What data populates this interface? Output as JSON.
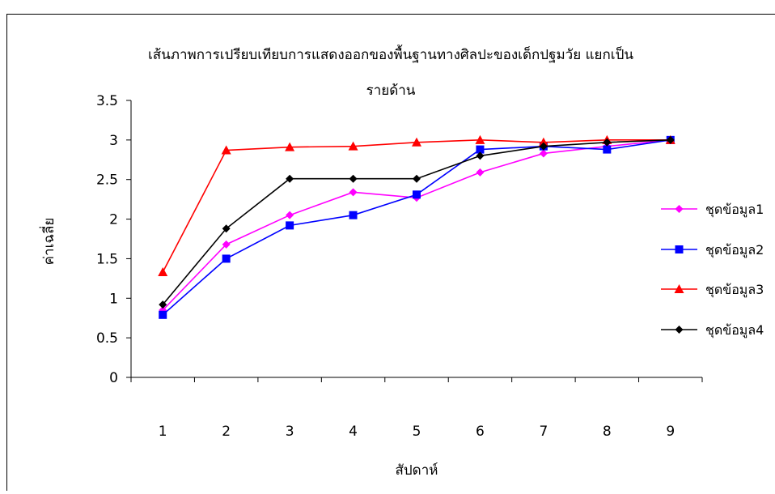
{
  "chart_data": {
    "type": "line",
    "title_line1": "เส้นภาพการเปรียบเทียบการแสดงออกของพื้นฐานทางศิลปะของเด็กปฐมวัย แยกเป็น",
    "title_line2": "รายด้าน",
    "xlabel": "สัปดาห์",
    "ylabel": "ค่าเฉลี่ย",
    "x": [
      "1",
      "2",
      "3",
      "4",
      "5",
      "6",
      "7",
      "8",
      "9"
    ],
    "ylim": [
      0,
      3.5
    ],
    "yticks": [
      "0",
      "0.5",
      "1",
      "1.5",
      "2",
      "2.5",
      "3",
      "3.5"
    ],
    "grid": false,
    "legend_position": "right",
    "series": [
      {
        "name": "ชุดข้อมูล1",
        "color": "#ff00ff",
        "marker": "diamond",
        "values": [
          0.85,
          1.68,
          2.05,
          2.34,
          2.27,
          2.59,
          2.83,
          2.92,
          3.0
        ]
      },
      {
        "name": "ชุดข้อมูล2",
        "color": "#0000ff",
        "marker": "square",
        "values": [
          0.79,
          1.5,
          1.92,
          2.05,
          2.31,
          2.88,
          2.92,
          2.88,
          3.0
        ]
      },
      {
        "name": "ชุดข้อมูล3",
        "color": "#ff0000",
        "marker": "triangle",
        "values": [
          1.33,
          2.87,
          2.91,
          2.92,
          2.97,
          3.0,
          2.97,
          3.0,
          3.0
        ]
      },
      {
        "name": "ชุดข้อมูล4",
        "color": "#000000",
        "marker": "diamond",
        "values": [
          0.92,
          1.88,
          2.51,
          2.51,
          2.51,
          2.8,
          2.92,
          2.97,
          3.0
        ]
      }
    ]
  }
}
